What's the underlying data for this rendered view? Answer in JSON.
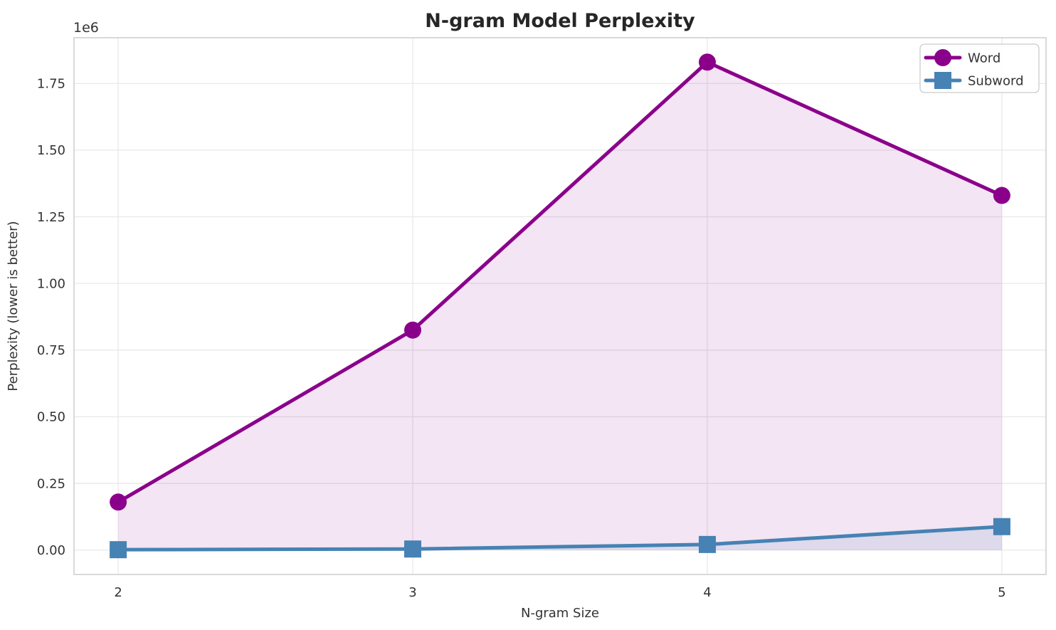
{
  "figure": {
    "background": "#ffffff"
  },
  "chart_data": {
    "type": "line",
    "title": "N-gram Model Perplexity",
    "xlabel": "N-gram Size",
    "ylabel": "Perplexity (lower is better)",
    "axis_offset_label": "1e6",
    "x": [
      2,
      3,
      4,
      5
    ],
    "series": [
      {
        "name": "Word",
        "color": "#8B008B",
        "marker": "circle",
        "values": [
          180000,
          825000,
          1830000,
          1330000
        ],
        "area_fill_opacity": 0.1
      },
      {
        "name": "Subword",
        "color": "#4682B4",
        "marker": "square",
        "values": [
          1500,
          4000,
          21000,
          88000
        ],
        "area_fill_opacity": 0.12
      }
    ],
    "xlim": [
      1.85,
      5.15
    ],
    "ylim": [
      -91500,
      1921500
    ],
    "xticks": {
      "values": [
        2,
        3,
        4,
        5
      ],
      "labels": [
        "2",
        "3",
        "4",
        "5"
      ]
    },
    "yticks": {
      "values": [
        0,
        250000,
        500000,
        750000,
        1000000,
        1250000,
        1500000,
        1750000
      ],
      "labels": [
        "0.00",
        "0.25",
        "0.50",
        "0.75",
        "1.00",
        "1.25",
        "1.50",
        "1.75"
      ]
    },
    "grid": true,
    "area_fill": true,
    "legend": {
      "position": "upper right",
      "entries": [
        "Word",
        "Subword"
      ]
    },
    "colors": {
      "grid": "#e8e8e8",
      "spine": "#d0d0d0",
      "tick_text": "#333333",
      "title_text": "#262626",
      "legend_border": "#cccccc",
      "background": "#ffffff"
    }
  }
}
